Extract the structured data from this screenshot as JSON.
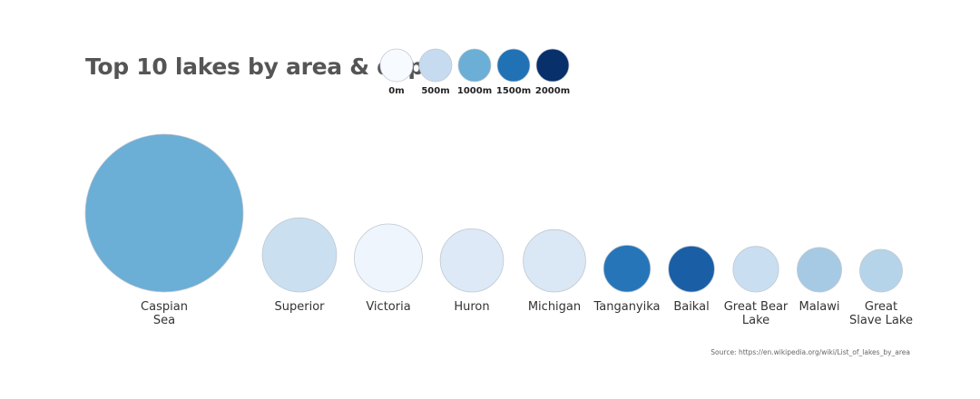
{
  "chart_data": {
    "type": "bubble",
    "title": "Top 10 lakes by area & depth",
    "size_encodes": "area",
    "color_encodes": "depth",
    "legend": {
      "placement": "top",
      "entries": [
        {
          "label": "0m",
          "value": 0,
          "color": "#f7fbff"
        },
        {
          "label": "500m",
          "value": 500,
          "color": "#c6dbef"
        },
        {
          "label": "1000m",
          "value": 1000,
          "color": "#6baed6"
        },
        {
          "label": "1500m",
          "value": 1500,
          "color": "#2171b5"
        },
        {
          "label": "2000m",
          "value": 2000,
          "color": "#08306b"
        }
      ]
    },
    "lakes": [
      {
        "name": "Caspian\nSea",
        "area_km2": 371000,
        "depth_m": 1025,
        "color": "#6baed6"
      },
      {
        "name": "Superior",
        "area_km2": 82100,
        "depth_m": 406,
        "color": "#cadff0"
      },
      {
        "name": "Victoria",
        "area_km2": 68870,
        "depth_m": 84,
        "color": "#eef5fc"
      },
      {
        "name": "Huron",
        "area_km2": 59600,
        "depth_m": 229,
        "color": "#dde9f6"
      },
      {
        "name": "Michigan",
        "area_km2": 58000,
        "depth_m": 281,
        "color": "#dae8f5"
      },
      {
        "name": "Tanganyika",
        "area_km2": 32600,
        "depth_m": 1470,
        "color": "#2775b9"
      },
      {
        "name": "Baikal",
        "area_km2": 31500,
        "depth_m": 1642,
        "color": "#1a5fa6"
      },
      {
        "name": "Great Bear\nLake",
        "area_km2": 31000,
        "depth_m": 446,
        "color": "#c9def1"
      },
      {
        "name": "Malawi",
        "area_km2": 29500,
        "depth_m": 706,
        "color": "#a6cae4"
      },
      {
        "name": "Great\nSlave Lake",
        "area_km2": 27000,
        "depth_m": 614,
        "color": "#b5d4e9"
      }
    ],
    "source": "Source: https://en.wikipedia.org/wiki/List_of_lakes_by_area"
  }
}
